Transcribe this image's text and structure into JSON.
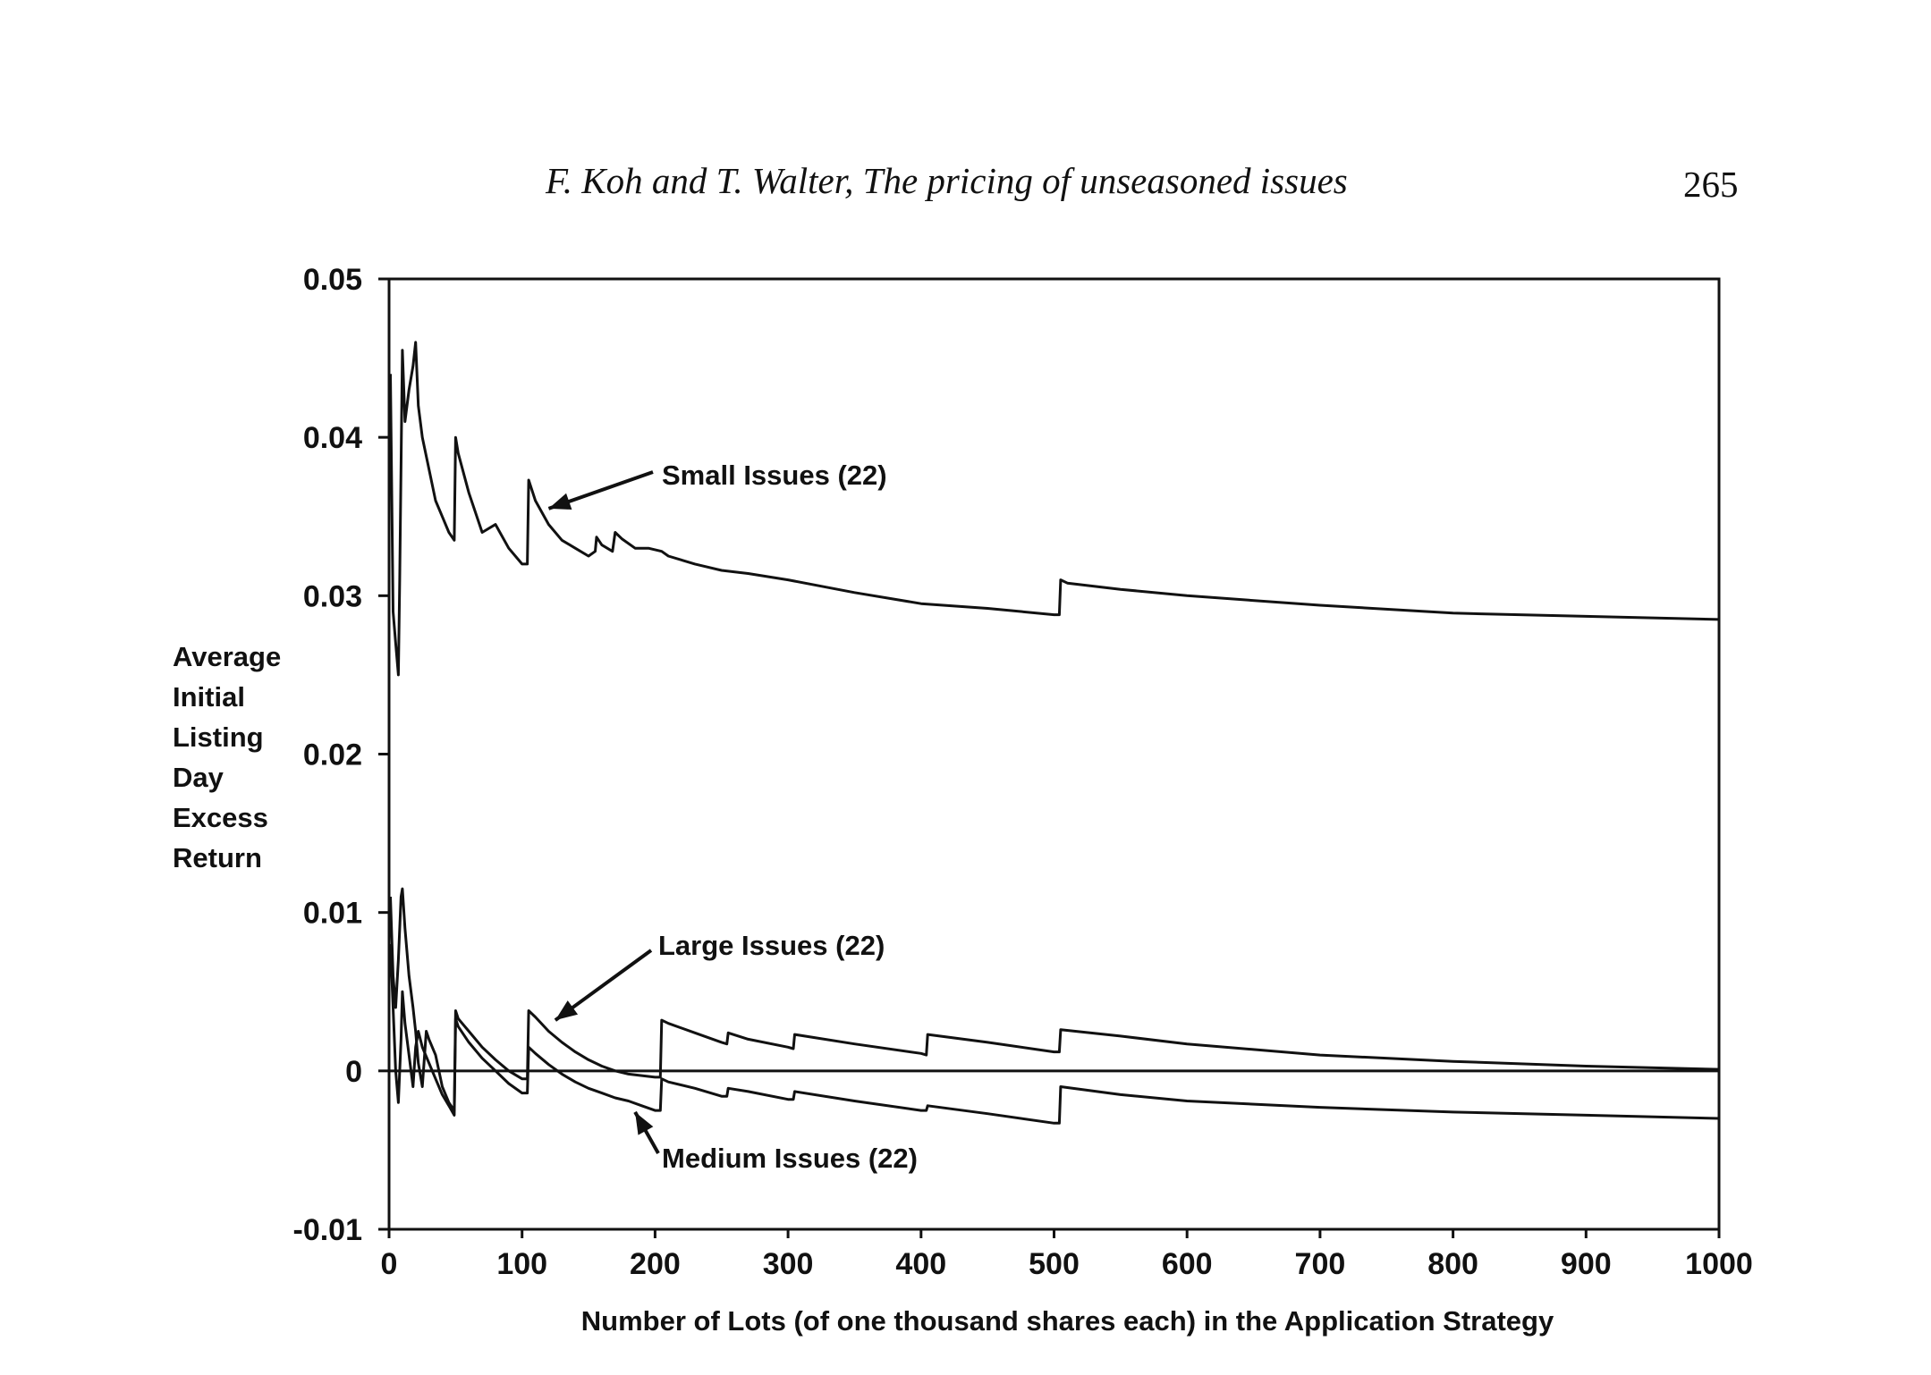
{
  "header": {
    "running_head": "F. Koh and T. Walter, The pricing of unseasoned issues",
    "page_number": "265"
  },
  "chart_data": {
    "type": "line",
    "title": "",
    "xlabel": "Number of Lots (of one thousand shares each) in the Application Strategy",
    "ylabel_lines": [
      "Average",
      "Initial",
      "Listing",
      "Day",
      "Excess",
      "Return"
    ],
    "xlim": [
      0,
      1000
    ],
    "ylim": [
      -0.01,
      0.05
    ],
    "x_ticks": [
      0,
      100,
      200,
      300,
      400,
      500,
      600,
      700,
      800,
      900,
      1000
    ],
    "x_tick_labels": [
      "0",
      "100",
      "200",
      "300",
      "400",
      "500",
      "600",
      "700",
      "800",
      "900",
      "1000"
    ],
    "y_ticks": [
      -0.01,
      0,
      0.01,
      0.02,
      0.03,
      0.04,
      0.05
    ],
    "y_tick_labels": [
      "-0.01",
      "0",
      "0.01",
      "0.02",
      "0.03",
      "0.04",
      "0.05"
    ],
    "grid": false,
    "legend": "none",
    "series": [
      {
        "name": "Small Issues (22)",
        "x": [
          1,
          3,
          5,
          7,
          8,
          10,
          12,
          15,
          18,
          20,
          22,
          25,
          30,
          35,
          40,
          45,
          49,
          50,
          52,
          60,
          70,
          80,
          90,
          100,
          104,
          105,
          110,
          120,
          130,
          140,
          150,
          155,
          156,
          160,
          168,
          170,
          175,
          185,
          195,
          205,
          210,
          230,
          250,
          270,
          300,
          350,
          400,
          450,
          500,
          504,
          505,
          510,
          550,
          600,
          700,
          800,
          900,
          1000
        ],
        "y": [
          0.044,
          0.029,
          0.027,
          0.025,
          0.031,
          0.0455,
          0.041,
          0.043,
          0.0445,
          0.046,
          0.042,
          0.04,
          0.038,
          0.036,
          0.035,
          0.034,
          0.0335,
          0.04,
          0.039,
          0.0365,
          0.034,
          0.0345,
          0.033,
          0.032,
          0.032,
          0.0373,
          0.036,
          0.0345,
          0.0335,
          0.033,
          0.0325,
          0.0328,
          0.0337,
          0.0332,
          0.0328,
          0.034,
          0.0336,
          0.033,
          0.033,
          0.0328,
          0.0325,
          0.032,
          0.0316,
          0.0314,
          0.031,
          0.0302,
          0.0295,
          0.0292,
          0.0288,
          0.0288,
          0.031,
          0.0308,
          0.0304,
          0.03,
          0.0294,
          0.0289,
          0.0287,
          0.0285
        ]
      },
      {
        "name": "Large Issues (22)",
        "x": [
          1,
          3,
          5,
          7,
          9,
          10,
          12,
          15,
          18,
          20,
          22,
          25,
          28,
          30,
          35,
          40,
          45,
          49,
          50,
          52,
          60,
          70,
          80,
          90,
          100,
          104,
          105,
          110,
          120,
          130,
          140,
          150,
          160,
          170,
          180,
          190,
          200,
          204,
          205,
          210,
          230,
          250,
          254,
          255,
          270,
          300,
          304,
          305,
          350,
          400,
          404,
          405,
          450,
          500,
          504,
          505,
          550,
          600,
          700,
          800,
          900,
          1000
        ],
        "y": [
          0.011,
          0.006,
          0.004,
          0.007,
          0.011,
          0.0115,
          0.009,
          0.006,
          0.004,
          0.0025,
          0.0005,
          -0.001,
          0.0025,
          0.002,
          0.001,
          -0.001,
          -0.002,
          -0.0025,
          0.0038,
          0.0033,
          0.0025,
          0.0015,
          0.0007,
          0.0,
          -0.0005,
          -0.0005,
          0.0038,
          0.0034,
          0.0025,
          0.0018,
          0.0012,
          0.0007,
          0.0003,
          0.0,
          -0.0002,
          -0.0003,
          -0.0004,
          -0.0004,
          0.0032,
          0.003,
          0.0024,
          0.0018,
          0.0017,
          0.0024,
          0.002,
          0.0015,
          0.0014,
          0.0023,
          0.0017,
          0.0011,
          0.001,
          0.0023,
          0.0018,
          0.0012,
          0.0012,
          0.0026,
          0.0022,
          0.0017,
          0.001,
          0.0006,
          0.0003,
          0.0001
        ]
      },
      {
        "name": "Medium Issues (22)",
        "x": [
          1,
          3,
          5,
          7,
          9,
          10,
          12,
          15,
          18,
          20,
          22,
          25,
          30,
          35,
          40,
          45,
          49,
          50,
          52,
          60,
          70,
          80,
          90,
          100,
          104,
          105,
          110,
          120,
          130,
          140,
          150,
          160,
          170,
          180,
          190,
          200,
          204,
          205,
          210,
          230,
          250,
          254,
          255,
          270,
          300,
          304,
          305,
          350,
          400,
          404,
          405,
          450,
          500,
          504,
          505,
          550,
          600,
          700,
          800,
          900,
          1000
        ],
        "y": [
          0.008,
          0.004,
          0.0,
          -0.002,
          0.002,
          0.005,
          0.003,
          0.001,
          -0.001,
          0.0015,
          0.0025,
          0.0015,
          0.0005,
          -0.0005,
          -0.0015,
          -0.0022,
          -0.0028,
          0.0033,
          0.0028,
          0.0018,
          0.0008,
          0.0,
          -0.0008,
          -0.0014,
          -0.0014,
          0.0015,
          0.0011,
          0.0004,
          -0.0002,
          -0.0007,
          -0.0011,
          -0.0014,
          -0.0017,
          -0.0019,
          -0.0022,
          -0.0025,
          -0.0025,
          -0.0005,
          -0.0007,
          -0.0011,
          -0.0016,
          -0.0016,
          -0.0011,
          -0.0013,
          -0.0018,
          -0.0018,
          -0.0013,
          -0.0019,
          -0.0025,
          -0.0025,
          -0.0022,
          -0.0027,
          -0.0033,
          -0.0033,
          -0.001,
          -0.0015,
          -0.0019,
          -0.0023,
          -0.0026,
          -0.0028,
          -0.003
        ]
      }
    ],
    "annotations": [
      {
        "text": "Small Issues (22)",
        "series": "Small Issues (22)",
        "x": 120,
        "y": 0.0355
      },
      {
        "text": "Large Issues (22)",
        "series": "Large Issues (22)",
        "x": 125,
        "y": 0.0032
      },
      {
        "text": "Medium Issues (22)",
        "series": "Medium Issues (22)",
        "x": 185,
        "y": -0.0026
      }
    ]
  }
}
